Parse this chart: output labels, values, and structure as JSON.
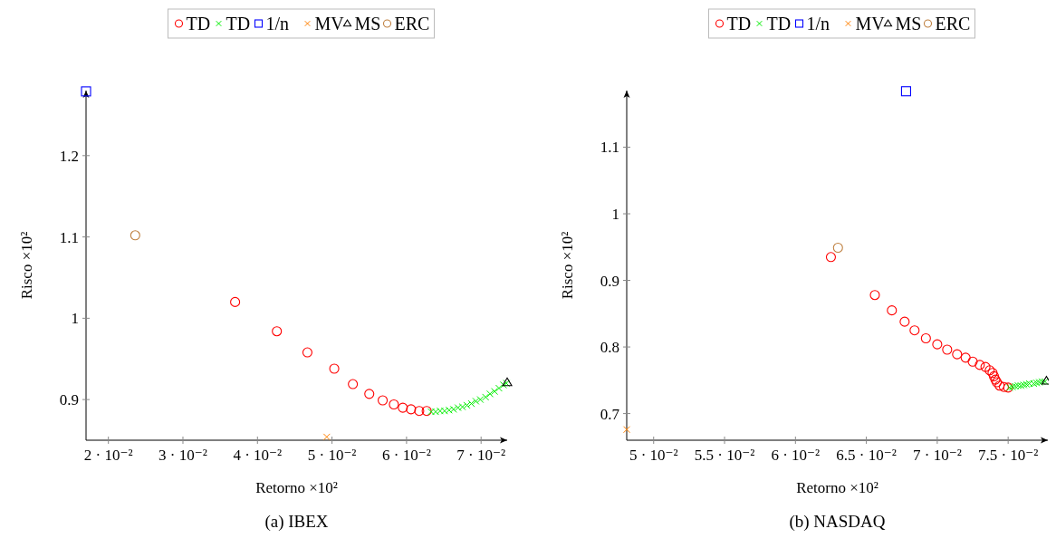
{
  "chart_data": [
    {
      "type": "scatter",
      "xlabel": "Retorno ×10²",
      "ylabel": "Risco ×10²",
      "legend": "top",
      "grid": false,
      "annotations": [
        "(a) IBEX"
      ],
      "xlim": [
        0.017,
        0.0735
      ],
      "ylim": [
        0.85,
        1.28
      ],
      "xticks": [
        {
          "value": 0.02,
          "label": "2 · 10⁻²"
        },
        {
          "value": 0.03,
          "label": "3 · 10⁻²"
        },
        {
          "value": 0.04,
          "label": "4 · 10⁻²"
        },
        {
          "value": 0.05,
          "label": "5 · 10⁻²"
        },
        {
          "value": 0.06,
          "label": "6 · 10⁻²"
        },
        {
          "value": 0.07,
          "label": "7 · 10⁻²"
        }
      ],
      "yticks": [
        0.9,
        1,
        1.1,
        1.2
      ],
      "series": [
        {
          "name": "TD",
          "color": "#ff0000",
          "marker": "circle",
          "x": [
            0.037,
            0.0426,
            0.0467,
            0.0503,
            0.0528,
            0.055,
            0.0568,
            0.0583,
            0.0595,
            0.0606,
            0.0617,
            0.0627
          ],
          "values": [
            1.02,
            0.984,
            0.958,
            0.938,
            0.919,
            0.907,
            0.899,
            0.894,
            0.89,
            0.888,
            0.886,
            0.886
          ]
        },
        {
          "name": "TD",
          "color": "#00ee00",
          "marker": "cross",
          "x": [
            0.0633,
            0.0639,
            0.0645,
            0.0651,
            0.0657,
            0.0663,
            0.0669,
            0.0675,
            0.0681,
            0.0687,
            0.0693,
            0.0699,
            0.0706,
            0.0712,
            0.0718,
            0.0724,
            0.073,
            0.0734
          ],
          "values": [
            0.885,
            0.885,
            0.886,
            0.886,
            0.887,
            0.888,
            0.89,
            0.891,
            0.893,
            0.895,
            0.898,
            0.9,
            0.903,
            0.907,
            0.91,
            0.914,
            0.918,
            0.92
          ]
        },
        {
          "name": "1/n",
          "color": "#0000ff",
          "marker": "square",
          "x": [
            0.017
          ],
          "values": [
            1.279
          ]
        },
        {
          "name": "MV",
          "color": "#ff8000",
          "marker": "cross",
          "x": [
            0.0493
          ],
          "values": [
            0.854
          ]
        },
        {
          "name": "MS",
          "color": "#000000",
          "marker": "triangle",
          "x": [
            0.0735
          ],
          "values": [
            0.921
          ]
        },
        {
          "name": "ERC",
          "color": "#bf8040",
          "marker": "circle",
          "x": [
            0.0236
          ],
          "values": [
            1.102
          ]
        }
      ]
    },
    {
      "type": "scatter",
      "xlabel": "Retorno ×10²",
      "ylabel": "Risco ×10²",
      "legend": "top",
      "grid": false,
      "annotations": [
        "(b) NASDAQ"
      ],
      "xlim": [
        0.0481,
        0.0778
      ],
      "ylim": [
        0.66,
        1.185
      ],
      "xticks": [
        {
          "value": 0.05,
          "label": "5 · 10⁻²"
        },
        {
          "value": 0.055,
          "label": "5.5 · 10⁻²"
        },
        {
          "value": 0.06,
          "label": "6 · 10⁻²"
        },
        {
          "value": 0.065,
          "label": "6.5 · 10⁻²"
        },
        {
          "value": 0.07,
          "label": "7 · 10⁻²"
        },
        {
          "value": 0.075,
          "label": "7.5 · 10⁻²"
        }
      ],
      "yticks": [
        0.7,
        0.8,
        0.9,
        1,
        1.1
      ],
      "series": [
        {
          "name": "TD",
          "color": "#ff0000",
          "marker": "circle",
          "x": [
            0.0625,
            0.0656,
            0.0668,
            0.0677,
            0.0684,
            0.0692,
            0.07,
            0.0707,
            0.0714,
            0.072,
            0.0725,
            0.073,
            0.0734,
            0.0737,
            0.0739,
            0.074,
            0.0741,
            0.0742,
            0.0744,
            0.0747,
            0.075
          ],
          "values": [
            0.935,
            0.878,
            0.855,
            0.838,
            0.825,
            0.813,
            0.804,
            0.796,
            0.789,
            0.784,
            0.778,
            0.773,
            0.77,
            0.765,
            0.761,
            0.756,
            0.751,
            0.747,
            0.742,
            0.74,
            0.739
          ]
        },
        {
          "name": "TD",
          "color": "#00ee00",
          "marker": "cross",
          "x": [
            0.0751,
            0.0753,
            0.0755,
            0.0757,
            0.0759,
            0.0761,
            0.0763,
            0.0765,
            0.0768,
            0.077,
            0.0772,
            0.0774,
            0.0776
          ],
          "values": [
            0.739,
            0.74,
            0.741,
            0.742,
            0.742,
            0.743,
            0.744,
            0.745,
            0.745,
            0.746,
            0.747,
            0.748,
            0.748
          ]
        },
        {
          "name": "1/n",
          "color": "#0000ff",
          "marker": "square",
          "x": [
            0.0678
          ],
          "values": [
            1.184
          ]
        },
        {
          "name": "MV",
          "color": "#ff8000",
          "marker": "cross",
          "x": [
            0.0481
          ],
          "values": [
            0.676
          ]
        },
        {
          "name": "MS",
          "color": "#000000",
          "marker": "triangle",
          "x": [
            0.0777
          ],
          "values": [
            0.749
          ]
        },
        {
          "name": "ERC",
          "color": "#bf8040",
          "marker": "circle",
          "x": [
            0.063
          ],
          "values": [
            0.949
          ]
        }
      ]
    }
  ]
}
